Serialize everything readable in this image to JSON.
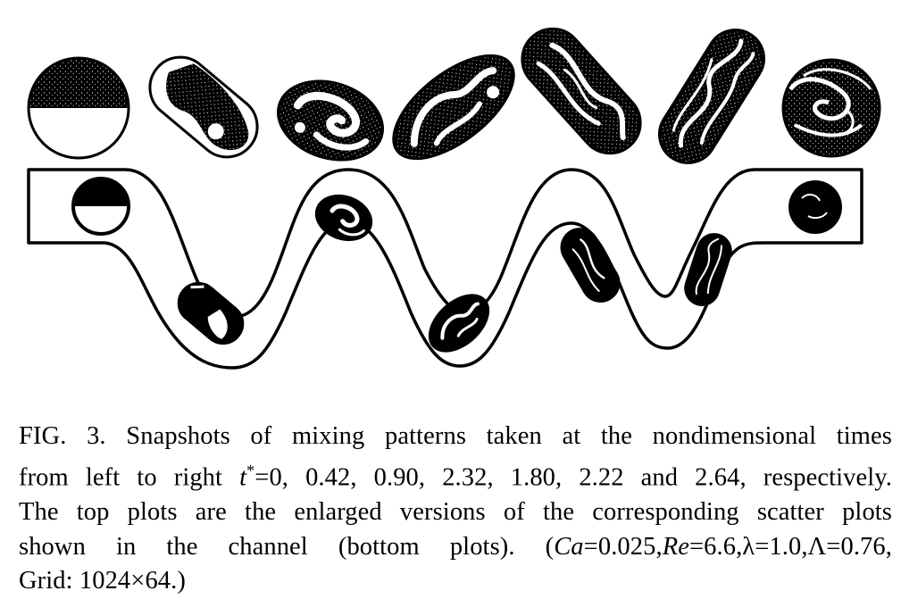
{
  "figure": {
    "label": "FIG. 3.",
    "snapshot_times": [
      "0",
      "0.42",
      "0.90",
      "2.32",
      "1.80",
      "2.22",
      "2.64"
    ]
  },
  "caption": {
    "line1": "FIG. 3. Snapshots of mixing patterns taken at the nondimensional times",
    "line2_a": "from left to right ",
    "line2_t": "t",
    "line2_sup": "*",
    "line2_b": "=0, 0.42, 0.90, 2.32, 1.80, 2.22 and 2.64, respectively.",
    "line3": "The top plots are the enlarged versions of the corresponding scatter plots",
    "line4_a": "shown in the channel (bottom plots). (",
    "ca_sym": "Ca",
    "ca_val": "=0.025,",
    "re_sym": "Re",
    "re_val": "=6.6,",
    "lambda": "λ=1.0,",
    "Lambda": "Λ=0.76,",
    "line5": "Grid: 1024×64.)"
  }
}
